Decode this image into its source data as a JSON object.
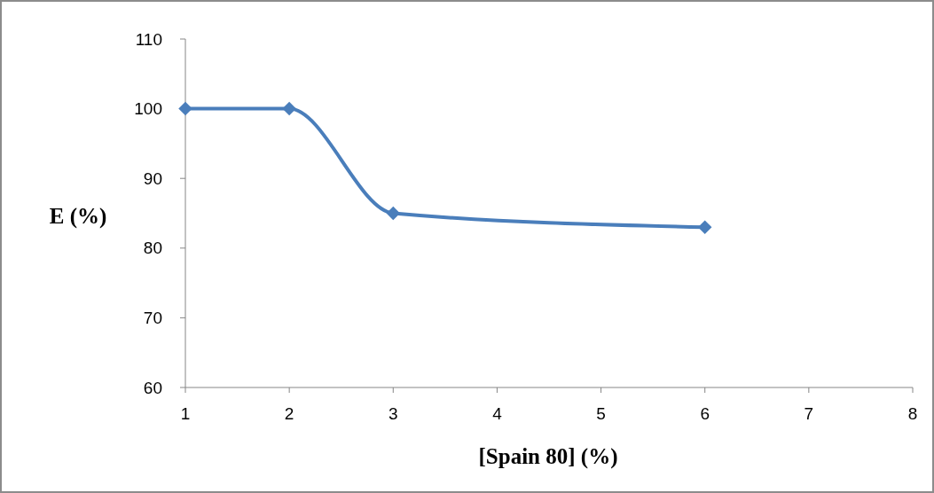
{
  "chart_data": {
    "type": "line",
    "xlabel": "[Spain 80] (%)",
    "ylabel": "E (%)",
    "x": [
      1,
      2,
      3,
      6
    ],
    "series": [
      {
        "color": "#4a7ebb",
        "values": [
          100,
          100,
          85,
          83
        ]
      }
    ],
    "xlim": [
      1,
      8
    ],
    "xticks": [
      1,
      2,
      3,
      4,
      5,
      6,
      7,
      8
    ],
    "ylim": [
      60,
      110
    ],
    "yticks": [
      60,
      70,
      80,
      90,
      100,
      110
    ],
    "marker": "diamond",
    "line_style": "solid",
    "grid": false
  }
}
